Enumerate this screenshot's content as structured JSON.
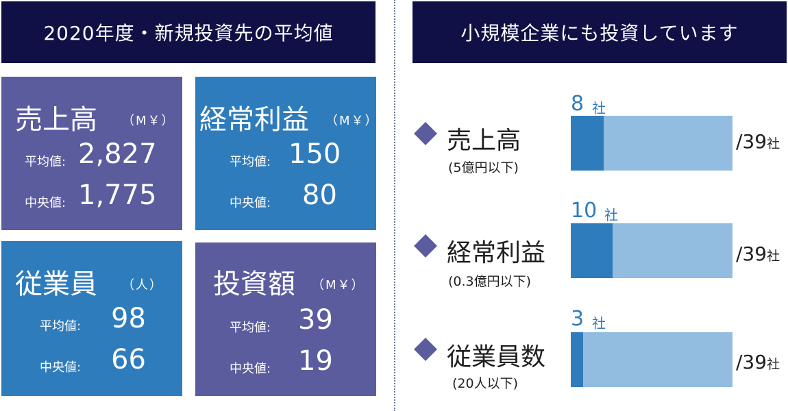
{
  "left_header": "2020年度・新規投資先の平均値",
  "right_header": "小規模企業にも投資しています",
  "cards": [
    {
      "title": "売上高",
      "unit": "（M￥）",
      "mean_label": "平均値:",
      "mean": "2,827",
      "median_label": "中央値:",
      "median": "1,775"
    },
    {
      "title": "経常利益",
      "unit": "（M￥）",
      "mean_label": "平均値:",
      "mean": "150",
      "median_label": "中央値:",
      "median": "80"
    },
    {
      "title": "従業員",
      "unit": "（人）",
      "mean_label": "平均値:",
      "mean": "98",
      "median_label": "中央値:",
      "median": "66"
    },
    {
      "title": "投資額",
      "unit": "（M￥）",
      "mean_label": "平均値:",
      "mean": "39",
      "median_label": "中央値:",
      "median": "19"
    }
  ],
  "rows": [
    {
      "title": "売上高",
      "note": "(5億円以下)",
      "count": "8",
      "count_unit": "社",
      "total": "/39",
      "total_unit": "社"
    },
    {
      "title": "経常利益",
      "note": "(0.3億円以下)",
      "count": "10",
      "count_unit": "社",
      "total": "/39",
      "total_unit": "社"
    },
    {
      "title": "従業員数",
      "note": "(20人以下)",
      "count": "3",
      "count_unit": "社",
      "total": "/39",
      "total_unit": "社"
    }
  ],
  "colors": {
    "dark_navy": "#101046",
    "purple": "#5b5c9e",
    "blue": "#2f7cbc",
    "light_blue": "#92bde0"
  },
  "chart_data": {
    "type": "bar",
    "categories": [
      "売上高",
      "経常利益",
      "従業員数"
    ],
    "values": [
      8,
      10,
      3
    ],
    "total": 39,
    "title": "小規模企業にも投資しています"
  }
}
